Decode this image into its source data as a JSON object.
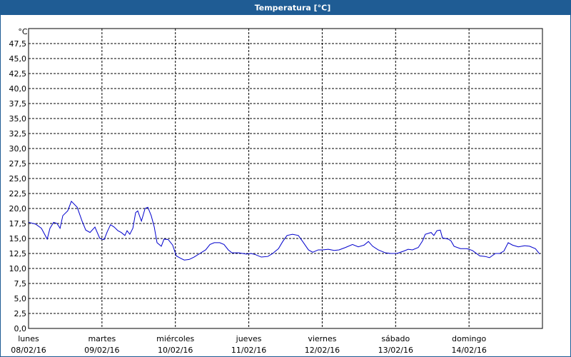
{
  "chart_data": {
    "type": "line",
    "title": "Temperatura [°C]",
    "y_unit": "°C",
    "xlim": [
      0,
      168
    ],
    "xticks": [
      {
        "value": 0,
        "label": [
          "lunes",
          "08/02/16"
        ]
      },
      {
        "value": 24,
        "label": [
          "martes",
          "09/02/16"
        ]
      },
      {
        "value": 48,
        "label": [
          "miércoles",
          "10/02/16"
        ]
      },
      {
        "value": 72,
        "label": [
          "jueves",
          "11/02/16"
        ]
      },
      {
        "value": 96,
        "label": [
          "viernes",
          "12/02/16"
        ]
      },
      {
        "value": 120,
        "label": [
          "sábado",
          "13/02/16"
        ]
      },
      {
        "value": 144,
        "label": [
          "domingo",
          "14/02/16"
        ]
      },
      168
    ],
    "ylim": [
      0,
      50
    ],
    "yticks": [
      {
        "value": 0,
        "label": "0,0"
      },
      {
        "value": 2.5,
        "label": "2,5"
      },
      {
        "value": 5,
        "label": "5,0"
      },
      {
        "value": 7.5,
        "label": "7,5"
      },
      {
        "value": 10,
        "label": "10,0"
      },
      {
        "value": 12.5,
        "label": "12,5"
      },
      {
        "value": 15,
        "label": "15,0"
      },
      {
        "value": 17.5,
        "label": "17,5"
      },
      {
        "value": 20,
        "label": "20,0"
      },
      {
        "value": 22.5,
        "label": "22,5"
      },
      {
        "value": 25,
        "label": "25,0"
      },
      {
        "value": 27.5,
        "label": "27,5"
      },
      {
        "value": 30,
        "label": "30,0"
      },
      {
        "value": 32.5,
        "label": "32,5"
      },
      {
        "value": 35,
        "label": "35,0"
      },
      {
        "value": 37.5,
        "label": "37,5"
      },
      {
        "value": 40,
        "label": "40,0"
      },
      {
        "value": 42.5,
        "label": "42,5"
      },
      {
        "value": 45,
        "label": "45,0"
      },
      {
        "value": 47.5,
        "label": "47,5"
      }
    ],
    "grid": true,
    "series": [
      {
        "name": "Temperatura",
        "color": "#0000cc",
        "x": [
          0,
          2.3,
          4.2,
          6.1,
          7,
          8.2,
          9.3,
          10.3,
          11.2,
          12.8,
          14,
          15.9,
          17.5,
          18.7,
          20.1,
          21.7,
          23.3,
          24.7,
          25.7,
          26.8,
          28,
          29.2,
          30.3,
          31.5,
          32.2,
          33.1,
          34.1,
          35,
          35.7,
          36.9,
          38.1,
          39,
          40.1,
          41.1,
          42,
          43.4,
          44.3,
          45.7,
          47.1,
          48.3,
          49.7,
          50.9,
          52.5,
          54.1,
          56,
          57.9,
          59.3,
          60.7,
          62.5,
          63.9,
          65.3,
          66.5,
          68.8,
          71.2,
          72.8,
          74.2,
          76.1,
          78.2,
          79.8,
          81.7,
          83.1,
          84.5,
          86.3,
          88.2,
          89.6,
          91.5,
          92.9,
          94.7,
          96.1,
          98,
          99.9,
          101.5,
          103.6,
          105.9,
          107.8,
          109.7,
          111.1,
          112.5,
          114.3,
          116.7,
          118.5,
          120.4,
          122.7,
          124.1,
          125.5,
          127.4,
          128.8,
          129.7,
          131.6,
          132.5,
          133.5,
          134.6,
          135.3,
          137.2,
          138.1,
          139.1,
          141.2,
          143.3,
          145.1,
          147.5,
          149.3,
          150.7,
          152.6,
          154,
          155.4,
          156.8,
          158.2,
          160.1,
          162.2,
          163.8,
          165.7,
          167.1
        ],
        "values": [
          17.7,
          17.4,
          16.7,
          14.9,
          16.7,
          17.7,
          17.5,
          16.7,
          18.8,
          19.6,
          21.2,
          20.2,
          17.9,
          16.4,
          16.0,
          16.9,
          15.0,
          14.8,
          16.1,
          17.3,
          16.9,
          16.3,
          16.0,
          15.5,
          16.3,
          15.7,
          16.7,
          19.3,
          19.6,
          17.9,
          20.0,
          20.2,
          18.8,
          16.9,
          14.3,
          13.7,
          14.9,
          14.8,
          13.9,
          12.1,
          11.7,
          11.4,
          11.5,
          11.9,
          12.5,
          13.1,
          14.0,
          14.3,
          14.3,
          14.0,
          13.1,
          12.6,
          12.6,
          12.4,
          12.5,
          12.3,
          11.9,
          12.0,
          12.5,
          13.3,
          14.5,
          15.5,
          15.7,
          15.5,
          14.5,
          13.1,
          12.7,
          13.1,
          13.1,
          13.2,
          13.0,
          13.1,
          13.5,
          14.0,
          13.6,
          13.9,
          14.5,
          13.7,
          13.1,
          12.6,
          12.5,
          12.5,
          12.9,
          13.2,
          13.1,
          13.5,
          14.6,
          15.7,
          16.0,
          15.5,
          16.3,
          16.4,
          15.1,
          14.9,
          14.6,
          13.7,
          13.3,
          13.3,
          13.0,
          12.1,
          12.0,
          11.8,
          12.5,
          12.5,
          12.9,
          14.3,
          13.9,
          13.6,
          13.8,
          13.7,
          13.3,
          12.4
        ]
      }
    ]
  }
}
